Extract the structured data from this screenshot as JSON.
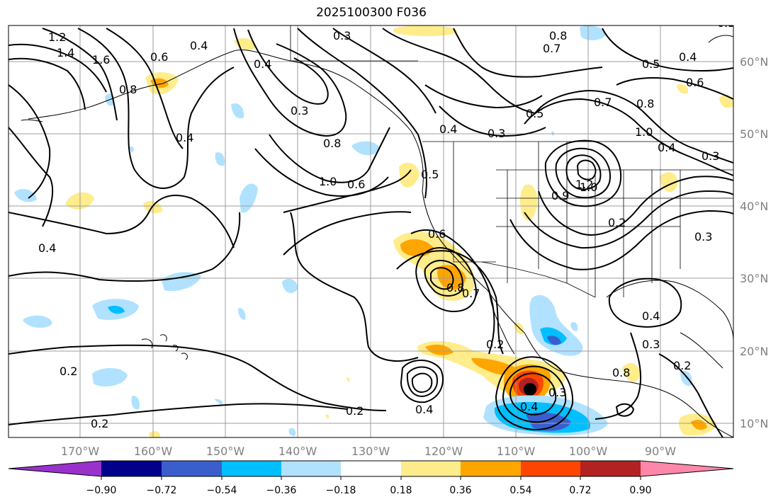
{
  "title": "2025100300 F036",
  "map": {
    "lon_ticks": [
      "170°W",
      "160°W",
      "150°W",
      "140°W",
      "130°W",
      "120°W",
      "110°W",
      "100°W",
      "90°W"
    ],
    "lat_ticks": [
      "60°N",
      "50°N",
      "40°N",
      "30°N",
      "20°N",
      "10°N"
    ]
  },
  "colorbar": {
    "labels": [
      "−0.90",
      "−0.72",
      "−0.54",
      "−0.36",
      "−0.18",
      "0.18",
      "0.36",
      "0.54",
      "0.72",
      "0.90"
    ],
    "colors": [
      "#9932cc",
      "#00008b",
      "#3a5fcd",
      "#00bfff",
      "#b0e2ff",
      "#ffffff",
      "#ffec8b",
      "#ffa500",
      "#ff4500",
      "#b22222",
      "#ff88aa",
      "#ff88aa"
    ]
  },
  "contour_labels": [
    "1.2",
    "1.4",
    "1.6",
    "0.6",
    "0.4",
    "0.4",
    "0.8",
    "0.8",
    "0.7",
    "0.4",
    "0.3",
    "0.5",
    "0.6",
    "0.3",
    "0.4",
    "1.0",
    "0.3",
    "0.8",
    "1.0",
    "0.6",
    "0.5",
    "0.4",
    "0.3",
    "0.5",
    "0.7",
    "0.8",
    "1.0",
    "0.4",
    "0.3",
    "1.2",
    "0.9",
    "0.2",
    "0.4",
    "0.6",
    "0.8",
    "0.7",
    "0.4",
    "0.3",
    "0.2",
    "0.3",
    "0.2",
    "0.4",
    "0.2",
    "0.2",
    "0.8",
    "0.4",
    "0.3",
    "0.2"
  ]
}
